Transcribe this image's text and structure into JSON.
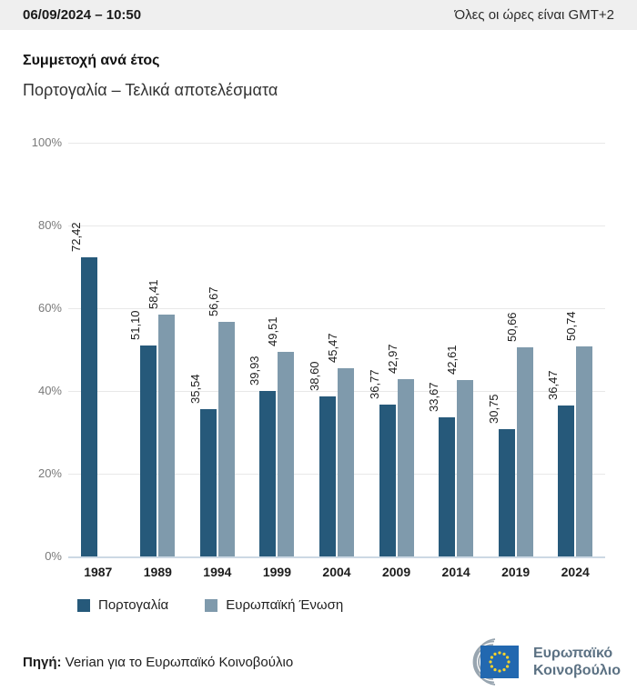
{
  "header": {
    "datetime": "06/09/2024 – 10:50",
    "timezone_note": "Όλες οι ώρες είναι GMT+2"
  },
  "title": "Συμμετοχή ανά έτος",
  "subtitle": "Πορτογαλία – Τελικά αποτελέσματα",
  "chart_data": {
    "type": "bar",
    "categories": [
      "1987",
      "1989",
      "1994",
      "1999",
      "2004",
      "2009",
      "2014",
      "2019",
      "2024"
    ],
    "series": [
      {
        "name": "Πορτογαλία",
        "color": "#26597a",
        "values": [
          72.42,
          51.1,
          35.54,
          39.93,
          38.6,
          36.77,
          33.67,
          30.75,
          36.47
        ],
        "labels": [
          "72,42",
          "51,10",
          "35,54",
          "39,93",
          "38,60",
          "36,77",
          "33,67",
          "30,75",
          "36,47"
        ]
      },
      {
        "name": "Ευρωπαϊκή Ένωση",
        "color": "#7f9aac",
        "values": [
          null,
          58.41,
          56.67,
          49.51,
          45.47,
          42.97,
          42.61,
          50.66,
          50.74
        ],
        "labels": [
          null,
          "58,41",
          "56,67",
          "49,51",
          "45,47",
          "42,97",
          "42,61",
          "50,66",
          "50,74"
        ]
      }
    ],
    "title": "Συμμετοχή ανά έτος",
    "xlabel": "",
    "ylabel": "",
    "ylim": [
      0,
      100
    ],
    "yticks": [
      "0%",
      "20%",
      "40%",
      "60%",
      "80%",
      "100%"
    ],
    "grid": true,
    "legend_position": "bottom"
  },
  "source": {
    "label": "Πηγή:",
    "text": " Verian για το Ευρωπαϊκό Κοινοβούλιο"
  },
  "logo": {
    "line1": "Ευρωπαϊκό",
    "line2": "Κοινοβούλιο"
  }
}
